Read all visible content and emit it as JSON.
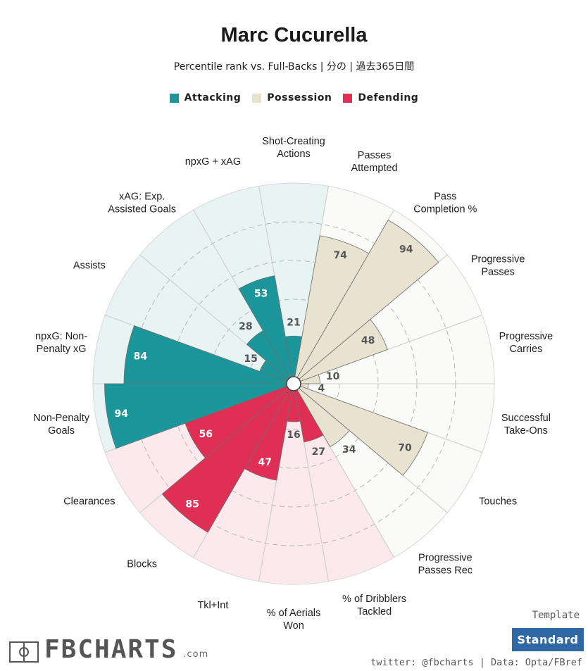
{
  "header": {
    "title": "Marc Cucurella",
    "subtitle": "Percentile rank vs. Full-Backs | 分の | 過去365日間"
  },
  "legend": [
    {
      "label": "Attacking",
      "color": "#1b979b"
    },
    {
      "label": "Possession",
      "color": "#e8e2d0"
    },
    {
      "label": "Defending",
      "color": "#df2f55"
    }
  ],
  "footer": {
    "logo_text": "FBCHARTS",
    "logo_tld": ".com",
    "template_label": "Template",
    "template_value": "Standard",
    "credit": "twitter: @fbcharts | Data: Opta/FBref"
  },
  "chart_data": {
    "type": "polar-bar",
    "title": "Marc Cucurella",
    "subtitle": "Percentile rank vs. Full-Backs | 分の | 過去365日間",
    "rlim": [
      0,
      100
    ],
    "grid": true,
    "legend_position": "top",
    "groups": {
      "Attacking": {
        "bar": "#1b979b",
        "bg": "#e8f4f4",
        "text": "#ffffff"
      },
      "Possession": {
        "bar": "#e8e2d0",
        "bg": "#fafaf8",
        "text": "#555555"
      },
      "Defending": {
        "bar": "#df2f55",
        "bg": "#fbe9ed",
        "text": "#ffffff"
      }
    },
    "categories": [
      {
        "lines": [
          "Shot-Creating",
          "Actions"
        ],
        "value": 21,
        "group": "Attacking"
      },
      {
        "lines": [
          "Passes",
          "Attempted"
        ],
        "value": 74,
        "group": "Possession"
      },
      {
        "lines": [
          "Pass",
          "Completion %"
        ],
        "value": 94,
        "group": "Possession"
      },
      {
        "lines": [
          "Progressive",
          "Passes"
        ],
        "value": 48,
        "group": "Possession"
      },
      {
        "lines": [
          "Progressive",
          "Carries"
        ],
        "value": 10,
        "group": "Possession"
      },
      {
        "lines": [
          "Successful",
          "Take-Ons"
        ],
        "value": 4,
        "group": "Possession"
      },
      {
        "lines": [
          "Touches"
        ],
        "value": 70,
        "group": "Possession"
      },
      {
        "lines": [
          "Progressive",
          "Passes Rec"
        ],
        "value": 34,
        "group": "Possession"
      },
      {
        "lines": [
          "% of Dribblers",
          "Tackled"
        ],
        "value": 27,
        "group": "Defending"
      },
      {
        "lines": [
          "% of Aerials",
          "Won"
        ],
        "value": 16,
        "group": "Defending"
      },
      {
        "lines": [
          "Tkl+Int"
        ],
        "value": 47,
        "group": "Defending"
      },
      {
        "lines": [
          "Blocks"
        ],
        "value": 85,
        "group": "Defending"
      },
      {
        "lines": [
          "Clearances"
        ],
        "value": 56,
        "group": "Defending"
      },
      {
        "lines": [
          "Non-Penalty",
          "Goals"
        ],
        "value": 94,
        "group": "Attacking"
      },
      {
        "lines": [
          "npxG: Non-",
          "Penalty xG"
        ],
        "value": 84,
        "group": "Attacking"
      },
      {
        "lines": [
          "Assists"
        ],
        "value": 15,
        "group": "Attacking"
      },
      {
        "lines": [
          "xAG: Exp.",
          "Assisted Goals"
        ],
        "value": 28,
        "group": "Attacking"
      },
      {
        "lines": [
          "npxG + xAG"
        ],
        "value": 53,
        "group": "Attacking"
      }
    ]
  }
}
